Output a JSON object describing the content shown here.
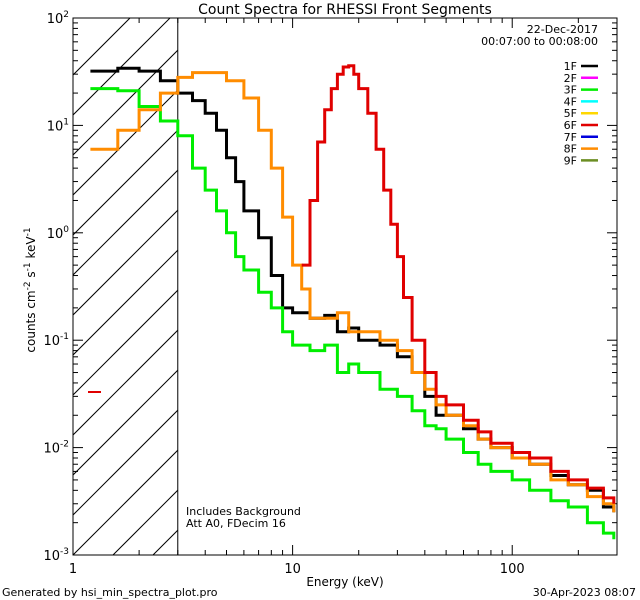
{
  "chart_data": {
    "type": "line",
    "title": "Count Spectra for RHESSI Front Segments",
    "xlabel": "Energy (keV)",
    "ylabel_main": "counts cm",
    "ylabel_sup1": "-2",
    "ylabel_mid": " s",
    "ylabel_sup2": "-1",
    "ylabel_mid2": " keV",
    "ylabel_sup3": "-1",
    "xscale": "log",
    "yscale": "log",
    "xlim": [
      1,
      300
    ],
    "ylim": [
      0.001,
      100
    ],
    "x_ticks": [
      {
        "value": 1,
        "label": "1"
      },
      {
        "value": 10,
        "label": "10"
      },
      {
        "value": 100,
        "label": "100"
      }
    ],
    "y_ticks": [
      {
        "value": 100,
        "base": "10",
        "exp": "2"
      },
      {
        "value": 10,
        "base": "10",
        "exp": "1"
      },
      {
        "value": 1,
        "base": "10",
        "exp": "0"
      },
      {
        "value": 0.1,
        "base": "10",
        "exp": "-1"
      },
      {
        "value": 0.01,
        "base": "10",
        "exp": "-2"
      },
      {
        "value": 0.001,
        "base": "10",
        "exp": "-3"
      }
    ],
    "excluded_region_max_kev": 3,
    "date": "22-Dec-2017",
    "time_range": "00:07:00 to 00:08:00",
    "annotation_line1": "Includes Background",
    "annotation_line2": "Att A0, FDecim 16",
    "legend_position": "top-right",
    "legend": [
      {
        "label": "1F",
        "color": "#000000"
      },
      {
        "label": "2F",
        "color": "#ff00ff"
      },
      {
        "label": "3F",
        "color": "#00ee00"
      },
      {
        "label": "4F",
        "color": "#00ffff"
      },
      {
        "label": "5F",
        "color": "#ffd700"
      },
      {
        "label": "6F",
        "color": "#e00000"
      },
      {
        "label": "7F",
        "color": "#0000dd"
      },
      {
        "label": "8F",
        "color": "#ff8c00"
      },
      {
        "label": "9F",
        "color": "#6b8e23"
      }
    ],
    "series": [
      {
        "name": "1F",
        "color": "#000000",
        "points": [
          [
            1.2,
            32
          ],
          [
            1.6,
            34
          ],
          [
            2,
            32
          ],
          [
            2.5,
            26
          ],
          [
            3,
            20
          ],
          [
            3.5,
            17
          ],
          [
            4,
            13
          ],
          [
            4.5,
            9
          ],
          [
            5,
            5
          ],
          [
            5.5,
            3
          ],
          [
            6,
            1.6
          ],
          [
            7,
            0.9
          ],
          [
            8,
            0.4
          ],
          [
            9,
            0.2
          ],
          [
            10,
            0.18
          ],
          [
            12,
            0.16
          ],
          [
            14,
            0.17
          ],
          [
            16,
            0.12
          ],
          [
            18,
            0.13
          ],
          [
            20,
            0.1
          ],
          [
            25,
            0.09
          ],
          [
            30,
            0.07
          ],
          [
            35,
            0.05
          ],
          [
            40,
            0.03
          ],
          [
            45,
            0.02
          ],
          [
            50,
            0.02
          ],
          [
            60,
            0.015
          ],
          [
            70,
            0.012
          ],
          [
            80,
            0.01
          ],
          [
            100,
            0.008
          ],
          [
            120,
            0.007
          ],
          [
            150,
            0.0055
          ],
          [
            180,
            0.0045
          ],
          [
            220,
            0.004
          ],
          [
            260,
            0.0028
          ],
          [
            290,
            0.0025
          ]
        ]
      },
      {
        "name": "3F",
        "color": "#00ee00",
        "points": [
          [
            1.2,
            22
          ],
          [
            1.6,
            21
          ],
          [
            2,
            15
          ],
          [
            2.5,
            11
          ],
          [
            3,
            8
          ],
          [
            3.5,
            4
          ],
          [
            4,
            2.5
          ],
          [
            4.5,
            1.6
          ],
          [
            5,
            1
          ],
          [
            5.5,
            0.6
          ],
          [
            6,
            0.45
          ],
          [
            7,
            0.28
          ],
          [
            8,
            0.2
          ],
          [
            9,
            0.12
          ],
          [
            10,
            0.09
          ],
          [
            12,
            0.08
          ],
          [
            14,
            0.09
          ],
          [
            16,
            0.05
          ],
          [
            18,
            0.06
          ],
          [
            20,
            0.05
          ],
          [
            25,
            0.035
          ],
          [
            30,
            0.03
          ],
          [
            35,
            0.022
          ],
          [
            40,
            0.016
          ],
          [
            45,
            0.015
          ],
          [
            50,
            0.012
          ],
          [
            60,
            0.009
          ],
          [
            70,
            0.007
          ],
          [
            80,
            0.006
          ],
          [
            100,
            0.005
          ],
          [
            120,
            0.004
          ],
          [
            150,
            0.0032
          ],
          [
            180,
            0.0028
          ],
          [
            220,
            0.002
          ],
          [
            260,
            0.0016
          ],
          [
            290,
            0.0014
          ]
        ]
      },
      {
        "name": "8F",
        "color": "#ff8c00",
        "points": [
          [
            1.2,
            6
          ],
          [
            1.6,
            9
          ],
          [
            2,
            14
          ],
          [
            2.5,
            20
          ],
          [
            3,
            28
          ],
          [
            3.5,
            31
          ],
          [
            4,
            31
          ],
          [
            5,
            26
          ],
          [
            6,
            18
          ],
          [
            7,
            9
          ],
          [
            8,
            4
          ],
          [
            9,
            1.4
          ],
          [
            10,
            0.5
          ],
          [
            11,
            0.3
          ],
          [
            12,
            0.16
          ],
          [
            14,
            0.16
          ],
          [
            16,
            0.18
          ],
          [
            18,
            0.12
          ],
          [
            20,
            0.12
          ],
          [
            25,
            0.1
          ],
          [
            30,
            0.08
          ],
          [
            35,
            0.05
          ],
          [
            40,
            0.035
          ],
          [
            45,
            0.025
          ],
          [
            50,
            0.02
          ],
          [
            60,
            0.016
          ],
          [
            70,
            0.012
          ],
          [
            80,
            0.01
          ],
          [
            100,
            0.008
          ],
          [
            120,
            0.007
          ],
          [
            150,
            0.005
          ],
          [
            180,
            0.0045
          ],
          [
            220,
            0.0035
          ],
          [
            260,
            0.003
          ],
          [
            290,
            0.0025
          ]
        ]
      },
      {
        "name": "6F",
        "color": "#e00000",
        "points": [
          [
            11,
            0.5
          ],
          [
            12,
            2
          ],
          [
            13,
            7
          ],
          [
            14,
            14
          ],
          [
            15,
            22
          ],
          [
            16,
            30
          ],
          [
            17,
            35
          ],
          [
            18,
            36
          ],
          [
            19,
            30
          ],
          [
            20,
            22
          ],
          [
            22,
            13
          ],
          [
            24,
            6
          ],
          [
            26,
            2.5
          ],
          [
            28,
            1.2
          ],
          [
            30,
            0.6
          ],
          [
            32,
            0.25
          ],
          [
            35,
            0.1
          ],
          [
            40,
            0.05
          ],
          [
            45,
            0.03
          ],
          [
            50,
            0.025
          ],
          [
            60,
            0.018
          ],
          [
            70,
            0.014
          ],
          [
            80,
            0.011
          ],
          [
            100,
            0.009
          ],
          [
            120,
            0.008
          ],
          [
            150,
            0.006
          ],
          [
            180,
            0.005
          ],
          [
            220,
            0.0042
          ],
          [
            260,
            0.0034
          ],
          [
            290,
            0.003
          ]
        ]
      }
    ]
  },
  "footer": {
    "generator": "Generated by hsi_min_spectra_plot.pro",
    "timestamp": "30-Apr-2023 08:07"
  }
}
